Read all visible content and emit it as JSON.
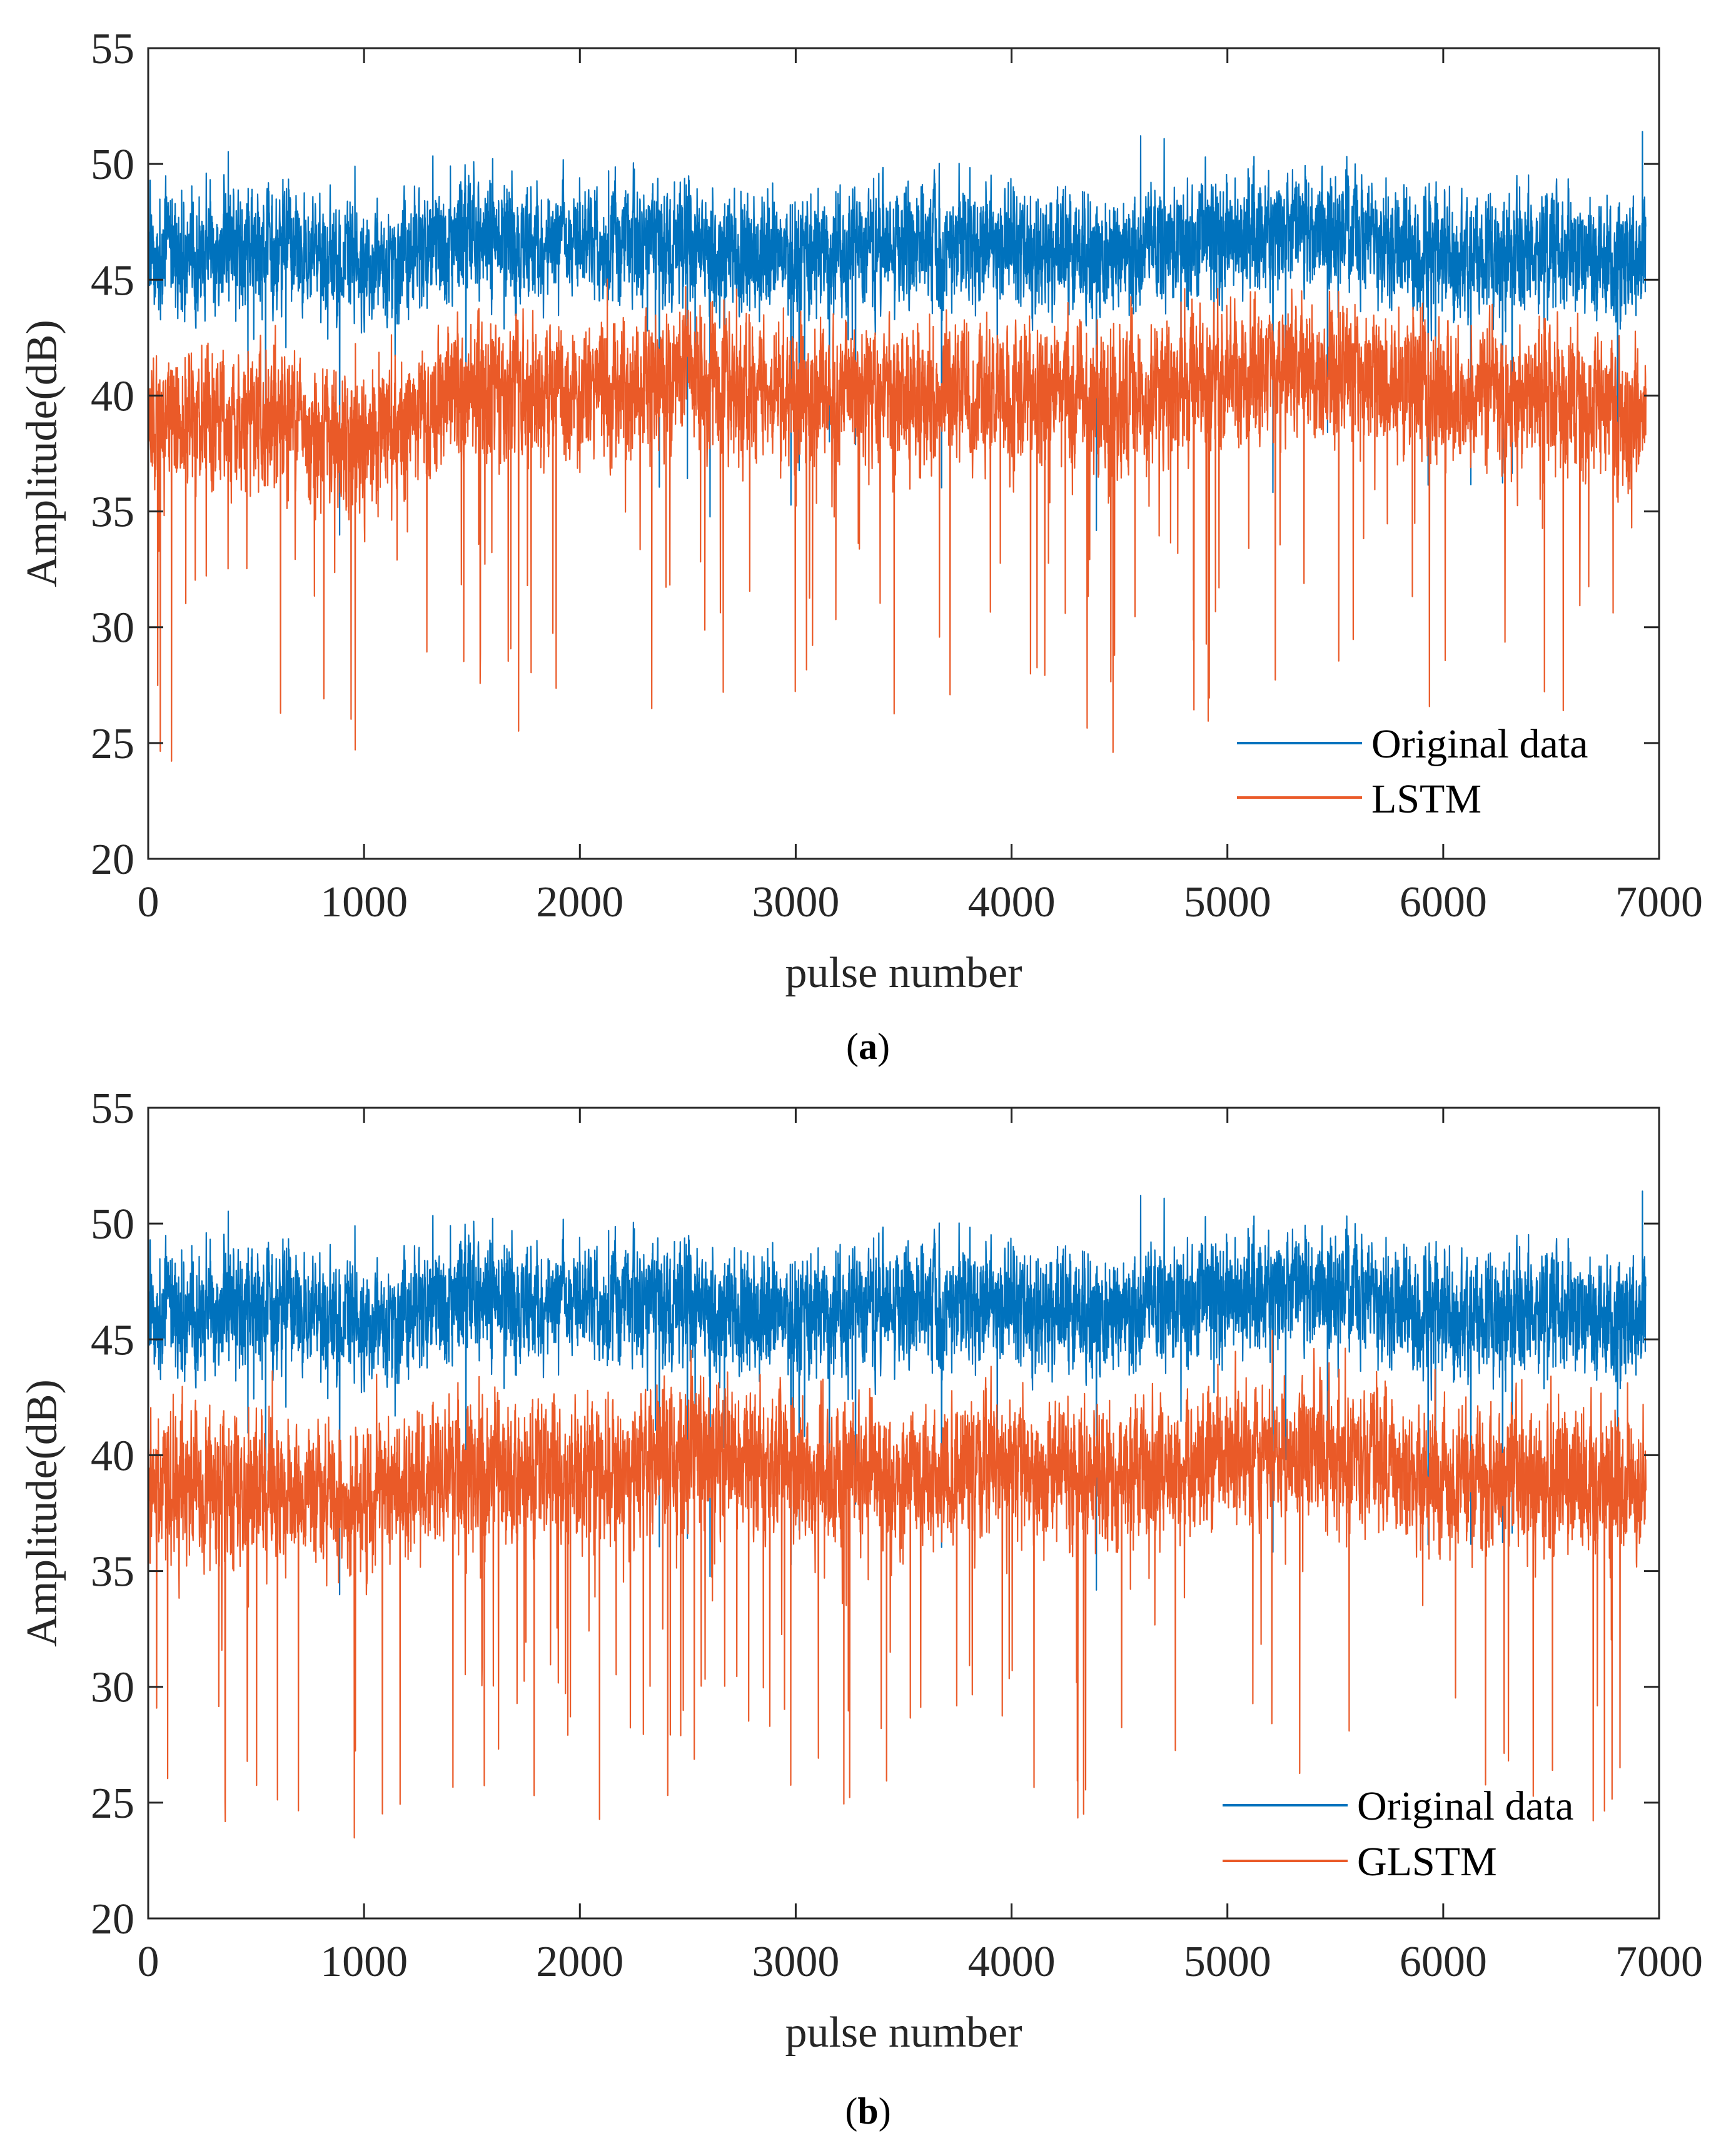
{
  "colors": {
    "original": "#0072BD",
    "model": "#EA5A28",
    "axis": "#262626"
  },
  "chart_data": [
    {
      "id": "a",
      "type": "line",
      "caption_label": "a",
      "xlabel": "pulse number",
      "ylabel": "Amplitude(dB)",
      "xlim": [
        0,
        7000
      ],
      "ylim": [
        20,
        55
      ],
      "xticks": [
        0,
        1000,
        2000,
        3000,
        4000,
        5000,
        6000,
        7000
      ],
      "yticks": [
        20,
        25,
        30,
        35,
        40,
        45,
        50,
        55
      ],
      "xtick_labels": [
        "0",
        "1000",
        "2000",
        "3000",
        "4000",
        "5000",
        "6000",
        "7000"
      ],
      "ytick_labels": [
        "20",
        "25",
        "30",
        "35",
        "40",
        "45",
        "50",
        "55"
      ],
      "legend_position": "bottom-right",
      "n_points": 6940,
      "series": [
        {
          "name": "Original data",
          "color_key": "original",
          "approx_mean_db": 46.5,
          "approx_range_db": [
            28.8,
            52.3
          ],
          "level_profile": {
            "x": [
              0,
              500,
              1000,
              1500,
              2000,
              2500,
              3000,
              3500,
              4000,
              4500,
              5000,
              5500,
              6000,
              6500,
              6940
            ],
            "y": [
              46,
              46.5,
              45.5,
              47,
              46.5,
              46.5,
              46,
              46.5,
              46.5,
              46,
              47,
              47,
              46,
              46,
              46
            ]
          }
        },
        {
          "name": "LSTM",
          "color_key": "model",
          "approx_mean_db": 39.5,
          "approx_range_db": [
            23,
            46
          ],
          "level_profile": {
            "x": [
              0,
              500,
              1000,
              1500,
              2000,
              2500,
              3000,
              3500,
              4000,
              4500,
              5000,
              5500,
              6000,
              6500,
              6940
            ],
            "y": [
              39,
              39,
              38,
              40.5,
              40,
              41,
              40,
              40,
              40,
              39.5,
              41,
              41,
              40,
              40,
              39
            ]
          }
        }
      ]
    },
    {
      "id": "b",
      "type": "line",
      "caption_label": "b",
      "xlabel": "pulse number",
      "ylabel": "Amplitude(dB)",
      "xlim": [
        0,
        7000
      ],
      "ylim": [
        20,
        55
      ],
      "xticks": [
        0,
        1000,
        2000,
        3000,
        4000,
        5000,
        6000,
        7000
      ],
      "yticks": [
        20,
        25,
        30,
        35,
        40,
        45,
        50,
        55
      ],
      "xtick_labels": [
        "0",
        "1000",
        "2000",
        "3000",
        "4000",
        "5000",
        "6000",
        "7000"
      ],
      "ytick_labels": [
        "20",
        "25",
        "30",
        "35",
        "40",
        "45",
        "50",
        "55"
      ],
      "legend_position": "bottom-right",
      "n_points": 6940,
      "series": [
        {
          "name": "Original data",
          "color_key": "original",
          "approx_mean_db": 46.5,
          "approx_range_db": [
            28.8,
            52.3
          ],
          "level_profile": {
            "x": [
              0,
              500,
              1000,
              1500,
              2000,
              2500,
              3000,
              3500,
              4000,
              4500,
              5000,
              5500,
              6000,
              6500,
              6940
            ],
            "y": [
              46,
              46.5,
              45.5,
              47,
              46.5,
              46.5,
              46,
              46.5,
              46.5,
              46,
              47,
              47,
              46,
              46,
              46
            ]
          }
        },
        {
          "name": "GLSTM",
          "color_key": "model",
          "approx_mean_db": 39.2,
          "approx_range_db": [
            22.6,
            47
          ],
          "level_profile": {
            "x": [
              0,
              500,
              1000,
              1500,
              2000,
              2500,
              3000,
              3500,
              4000,
              4500,
              5000,
              5500,
              6000,
              6500,
              6940
            ],
            "y": [
              39,
              38.5,
              38,
              39.5,
              39,
              40,
              39.5,
              39,
              39.5,
              39,
              40,
              40,
              39,
              39,
              38.5
            ]
          }
        }
      ]
    }
  ]
}
